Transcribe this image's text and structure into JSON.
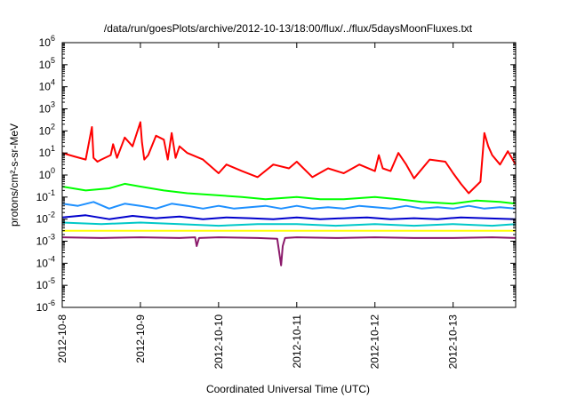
{
  "chart_data": {
    "type": "line",
    "title": "/data/run/goesPlots/archive/2012-10-13/18:00/flux/../flux/5daysMoonFluxes.txt",
    "xlabel": "Coordinated Universal Time (UTC)",
    "ylabel": "protons/cm²-s-sr-MeV",
    "yscale": "log",
    "ylim": [
      1e-06,
      1000000.0
    ],
    "y_ticks": [
      {
        "exp": "-6"
      },
      {
        "exp": "-5"
      },
      {
        "exp": "-4"
      },
      {
        "exp": "-3"
      },
      {
        "exp": "-2"
      },
      {
        "exp": "-1"
      },
      {
        "exp": "0"
      },
      {
        "exp": "1"
      },
      {
        "exp": "2"
      },
      {
        "exp": "3"
      },
      {
        "exp": "4"
      },
      {
        "exp": "5"
      },
      {
        "exp": "6"
      }
    ],
    "y_tick_base": "10",
    "xlim": [
      0,
      5.8
    ],
    "x_ticks": [
      {
        "x": 0,
        "label": "2012-10-8"
      },
      {
        "x": 1,
        "label": "2012-10-9"
      },
      {
        "x": 2,
        "label": "2012-10-10"
      },
      {
        "x": 3,
        "label": "2012-10-11"
      },
      {
        "x": 4,
        "label": "2012-10-12"
      },
      {
        "x": 5,
        "label": "2012-10-13"
      }
    ],
    "grid": false,
    "legend": "none",
    "series": [
      {
        "color": "#ff0000",
        "x": [
          0.0,
          0.15,
          0.3,
          0.38,
          0.4,
          0.45,
          0.5,
          0.62,
          0.65,
          0.7,
          0.8,
          0.9,
          1.0,
          1.02,
          1.05,
          1.1,
          1.2,
          1.3,
          1.35,
          1.4,
          1.45,
          1.5,
          1.6,
          1.8,
          2.0,
          2.1,
          2.3,
          2.5,
          2.7,
          2.9,
          3.0,
          3.2,
          3.4,
          3.6,
          3.8,
          4.0,
          4.05,
          4.1,
          4.2,
          4.3,
          4.4,
          4.5,
          4.7,
          4.9,
          5.0,
          5.1,
          5.2,
          5.35,
          5.4,
          5.45,
          5.5,
          5.6,
          5.7,
          5.8
        ],
        "values": [
          10,
          7,
          5,
          150,
          6,
          4,
          5,
          8,
          25,
          6,
          50,
          20,
          250,
          30,
          5,
          8,
          60,
          40,
          5,
          80,
          6,
          20,
          10,
          5,
          1.2,
          3,
          1.5,
          0.8,
          3,
          2,
          4,
          0.8,
          2,
          1.2,
          3,
          1.5,
          8,
          2,
          1.5,
          10,
          3,
          0.7,
          5,
          4,
          1.2,
          0.4,
          0.15,
          0.5,
          80,
          20,
          8,
          3,
          12,
          3
        ]
      },
      {
        "color": "#00ff00",
        "x": [
          0.0,
          0.3,
          0.6,
          0.8,
          1.0,
          1.3,
          1.6,
          2.0,
          2.3,
          2.6,
          3.0,
          3.3,
          3.6,
          4.0,
          4.3,
          4.6,
          5.0,
          5.3,
          5.6,
          5.8
        ],
        "values": [
          0.3,
          0.2,
          0.25,
          0.4,
          0.3,
          0.2,
          0.15,
          0.12,
          0.1,
          0.08,
          0.1,
          0.08,
          0.08,
          0.1,
          0.08,
          0.06,
          0.05,
          0.07,
          0.06,
          0.05
        ]
      },
      {
        "color": "#1e90ff",
        "x": [
          0.0,
          0.2,
          0.4,
          0.6,
          0.8,
          1.0,
          1.2,
          1.4,
          1.6,
          1.8,
          2.0,
          2.2,
          2.4,
          2.6,
          2.8,
          3.0,
          3.2,
          3.4,
          3.6,
          3.8,
          4.0,
          4.2,
          4.4,
          4.6,
          4.8,
          5.0,
          5.2,
          5.4,
          5.6,
          5.8
        ],
        "values": [
          0.05,
          0.04,
          0.06,
          0.03,
          0.05,
          0.04,
          0.03,
          0.05,
          0.04,
          0.03,
          0.04,
          0.03,
          0.035,
          0.04,
          0.03,
          0.04,
          0.03,
          0.035,
          0.03,
          0.04,
          0.035,
          0.03,
          0.04,
          0.03,
          0.035,
          0.03,
          0.04,
          0.03,
          0.035,
          0.03
        ]
      },
      {
        "color": "#0000cd",
        "x": [
          0.0,
          0.3,
          0.6,
          0.9,
          1.2,
          1.5,
          1.8,
          2.1,
          2.4,
          2.7,
          3.0,
          3.3,
          3.6,
          3.9,
          4.2,
          4.5,
          4.8,
          5.1,
          5.4,
          5.8
        ],
        "values": [
          0.012,
          0.015,
          0.01,
          0.014,
          0.011,
          0.013,
          0.01,
          0.012,
          0.011,
          0.01,
          0.012,
          0.01,
          0.011,
          0.012,
          0.01,
          0.011,
          0.01,
          0.012,
          0.011,
          0.01
        ]
      },
      {
        "color": "#00c8c8",
        "x": [
          0.0,
          0.5,
          1.0,
          1.5,
          2.0,
          2.5,
          3.0,
          3.5,
          4.0,
          4.5,
          5.0,
          5.5,
          5.8
        ],
        "values": [
          0.007,
          0.006,
          0.007,
          0.006,
          0.005,
          0.006,
          0.006,
          0.005,
          0.006,
          0.005,
          0.006,
          0.005,
          0.006
        ]
      },
      {
        "color": "#ffff00",
        "x": [
          0.0,
          1.0,
          2.0,
          3.0,
          4.0,
          5.0,
          5.8
        ],
        "values": [
          0.003,
          0.003,
          0.003,
          0.003,
          0.003,
          0.003,
          0.003
        ]
      },
      {
        "color": "#8b1a6b",
        "x": [
          0.0,
          0.5,
          1.0,
          1.5,
          1.7,
          1.72,
          1.75,
          2.0,
          2.5,
          2.75,
          2.8,
          2.82,
          2.85,
          3.0,
          3.5,
          4.0,
          4.5,
          5.0,
          5.5,
          5.8
        ],
        "values": [
          0.0015,
          0.0014,
          0.0015,
          0.0014,
          0.0015,
          0.0006,
          0.0014,
          0.0015,
          0.0014,
          0.0013,
          8e-05,
          0.0006,
          0.0014,
          0.0015,
          0.0014,
          0.0015,
          0.0014,
          0.0014,
          0.0015,
          0.0014
        ]
      }
    ]
  }
}
